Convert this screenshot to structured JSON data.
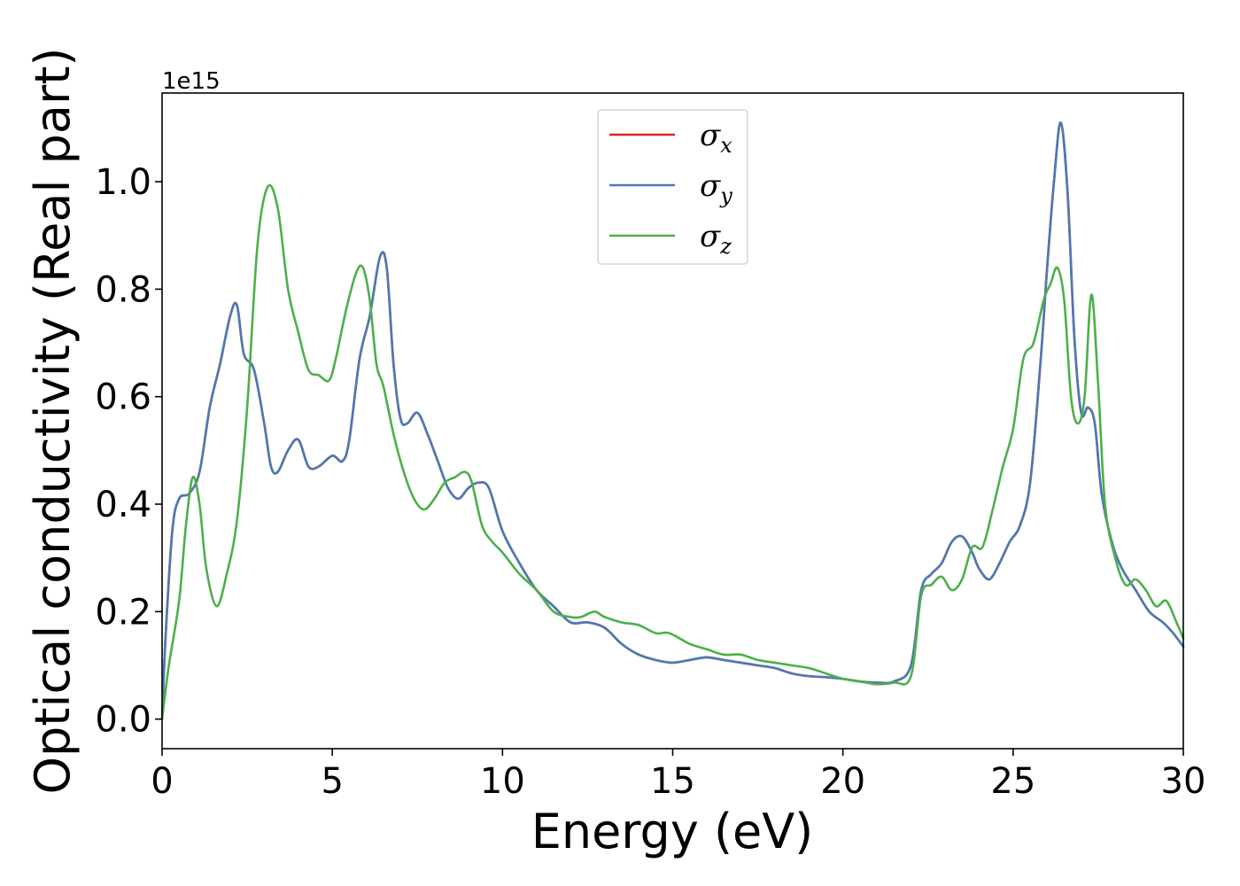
{
  "chart_data": {
    "type": "line",
    "title": "",
    "xlabel": "Energy (eV)",
    "ylabel": "Optical conductivity (Real part)",
    "y_offset_label": "1e15",
    "xlim": [
      0,
      30
    ],
    "ylim": [
      -0.055,
      1.165
    ],
    "xticks": [
      0,
      5,
      10,
      15,
      20,
      25,
      30
    ],
    "xtick_labels": [
      "0",
      "5",
      "10",
      "15",
      "20",
      "25",
      "30"
    ],
    "yticks": [
      0.0,
      0.2,
      0.4,
      0.6,
      0.8,
      1.0
    ],
    "ytick_labels": [
      "0.0",
      "0.2",
      "0.4",
      "0.6",
      "0.8",
      "1.0"
    ],
    "grid": false,
    "legend_position": "top-center",
    "series": [
      {
        "name": "σx",
        "legend_symbol": "σ",
        "legend_subscript": "x",
        "color": "#d62728",
        "x": [
          0,
          0.1,
          0.3,
          0.5,
          0.8,
          1.1,
          1.4,
          1.7,
          2.0,
          2.2,
          2.4,
          2.7,
          3.0,
          3.2,
          3.4,
          3.7,
          4.0,
          4.3,
          4.6,
          5.0,
          5.3,
          5.5,
          5.8,
          6.1,
          6.4,
          6.6,
          6.8,
          7.0,
          7.2,
          7.5,
          7.8,
          8.1,
          8.4,
          8.7,
          9.0,
          9.3,
          9.6,
          10.0,
          10.5,
          11.0,
          11.5,
          12.0,
          12.5,
          13.0,
          13.5,
          14.0,
          14.5,
          15.0,
          15.5,
          16.0,
          16.5,
          17.0,
          17.5,
          18.0,
          18.5,
          19.0,
          19.5,
          20.0,
          20.5,
          21.0,
          21.5,
          22.0,
          22.3,
          22.6,
          22.9,
          23.2,
          23.5,
          23.8,
          24.0,
          24.3,
          24.6,
          24.9,
          25.2,
          25.5,
          25.8,
          26.0,
          26.2,
          26.4,
          26.6,
          26.8,
          27.0,
          27.2,
          27.4,
          27.6,
          27.9,
          28.2,
          28.6,
          29.0,
          29.4,
          29.7,
          30.0
        ],
        "y": [
          0.0,
          0.15,
          0.35,
          0.41,
          0.42,
          0.46,
          0.58,
          0.66,
          0.75,
          0.77,
          0.68,
          0.65,
          0.55,
          0.47,
          0.46,
          0.5,
          0.52,
          0.47,
          0.47,
          0.49,
          0.48,
          0.52,
          0.67,
          0.75,
          0.86,
          0.84,
          0.66,
          0.56,
          0.55,
          0.57,
          0.53,
          0.48,
          0.43,
          0.41,
          0.43,
          0.44,
          0.43,
          0.35,
          0.29,
          0.24,
          0.21,
          0.18,
          0.18,
          0.17,
          0.14,
          0.12,
          0.11,
          0.105,
          0.11,
          0.115,
          0.11,
          0.105,
          0.1,
          0.095,
          0.085,
          0.08,
          0.078,
          0.075,
          0.07,
          0.068,
          0.07,
          0.1,
          0.24,
          0.27,
          0.29,
          0.33,
          0.34,
          0.31,
          0.28,
          0.26,
          0.29,
          0.33,
          0.36,
          0.44,
          0.66,
          0.84,
          1.0,
          1.11,
          0.98,
          0.71,
          0.57,
          0.58,
          0.55,
          0.42,
          0.33,
          0.28,
          0.24,
          0.2,
          0.18,
          0.16,
          0.135
        ]
      },
      {
        "name": "σy",
        "legend_symbol": "σ",
        "legend_subscript": "y",
        "color": "#4a7ab5",
        "x": [
          0,
          0.1,
          0.3,
          0.5,
          0.8,
          1.1,
          1.4,
          1.7,
          2.0,
          2.2,
          2.4,
          2.7,
          3.0,
          3.2,
          3.4,
          3.7,
          4.0,
          4.3,
          4.6,
          5.0,
          5.3,
          5.5,
          5.8,
          6.1,
          6.4,
          6.6,
          6.8,
          7.0,
          7.2,
          7.5,
          7.8,
          8.1,
          8.4,
          8.7,
          9.0,
          9.3,
          9.6,
          10.0,
          10.5,
          11.0,
          11.5,
          12.0,
          12.5,
          13.0,
          13.5,
          14.0,
          14.5,
          15.0,
          15.5,
          16.0,
          16.5,
          17.0,
          17.5,
          18.0,
          18.5,
          19.0,
          19.5,
          20.0,
          20.5,
          21.0,
          21.5,
          22.0,
          22.3,
          22.6,
          22.9,
          23.2,
          23.5,
          23.8,
          24.0,
          24.3,
          24.6,
          24.9,
          25.2,
          25.5,
          25.8,
          26.0,
          26.2,
          26.4,
          26.6,
          26.8,
          27.0,
          27.2,
          27.4,
          27.6,
          27.9,
          28.2,
          28.6,
          29.0,
          29.4,
          29.7,
          30.0
        ],
        "y": [
          0.0,
          0.15,
          0.35,
          0.41,
          0.42,
          0.46,
          0.58,
          0.66,
          0.75,
          0.77,
          0.68,
          0.65,
          0.55,
          0.47,
          0.46,
          0.5,
          0.52,
          0.47,
          0.47,
          0.49,
          0.48,
          0.52,
          0.67,
          0.75,
          0.86,
          0.84,
          0.66,
          0.56,
          0.55,
          0.57,
          0.53,
          0.48,
          0.43,
          0.41,
          0.43,
          0.44,
          0.43,
          0.35,
          0.29,
          0.24,
          0.21,
          0.18,
          0.18,
          0.17,
          0.14,
          0.12,
          0.11,
          0.105,
          0.11,
          0.115,
          0.11,
          0.105,
          0.1,
          0.095,
          0.085,
          0.08,
          0.078,
          0.075,
          0.07,
          0.068,
          0.07,
          0.1,
          0.24,
          0.27,
          0.29,
          0.33,
          0.34,
          0.31,
          0.28,
          0.26,
          0.29,
          0.33,
          0.36,
          0.44,
          0.66,
          0.84,
          1.0,
          1.11,
          0.98,
          0.71,
          0.57,
          0.58,
          0.55,
          0.42,
          0.33,
          0.28,
          0.24,
          0.2,
          0.18,
          0.16,
          0.135
        ]
      },
      {
        "name": "σz",
        "legend_symbol": "σ",
        "legend_subscript": "z",
        "color": "#4daf4a",
        "x": [
          0,
          0.2,
          0.5,
          0.7,
          0.9,
          1.1,
          1.3,
          1.6,
          1.9,
          2.2,
          2.5,
          2.8,
          3.1,
          3.4,
          3.7,
          4.0,
          4.3,
          4.6,
          4.9,
          5.1,
          5.4,
          5.7,
          5.9,
          6.1,
          6.3,
          6.5,
          6.8,
          7.1,
          7.4,
          7.7,
          8.0,
          8.3,
          8.6,
          8.9,
          9.1,
          9.4,
          9.7,
          10.0,
          10.5,
          11.0,
          11.5,
          12.0,
          12.3,
          12.7,
          13.0,
          13.5,
          14.0,
          14.5,
          14.9,
          15.5,
          16.0,
          16.5,
          17.0,
          17.5,
          18.0,
          18.5,
          19.0,
          19.5,
          20.0,
          20.5,
          21.0,
          21.5,
          22.0,
          22.3,
          22.6,
          22.9,
          23.2,
          23.5,
          23.8,
          24.1,
          24.4,
          24.7,
          25.0,
          25.3,
          25.6,
          25.9,
          26.1,
          26.3,
          26.5,
          26.7,
          26.9,
          27.1,
          27.3,
          27.5,
          27.7,
          28.0,
          28.3,
          28.6,
          28.9,
          29.2,
          29.5,
          29.8,
          30.0
        ],
        "y": [
          0.0,
          0.1,
          0.22,
          0.36,
          0.45,
          0.4,
          0.28,
          0.21,
          0.27,
          0.37,
          0.58,
          0.88,
          0.99,
          0.95,
          0.8,
          0.72,
          0.65,
          0.64,
          0.63,
          0.67,
          0.76,
          0.83,
          0.84,
          0.78,
          0.66,
          0.62,
          0.53,
          0.46,
          0.41,
          0.39,
          0.41,
          0.44,
          0.45,
          0.46,
          0.44,
          0.36,
          0.33,
          0.31,
          0.27,
          0.24,
          0.2,
          0.19,
          0.19,
          0.2,
          0.19,
          0.18,
          0.175,
          0.16,
          0.16,
          0.14,
          0.13,
          0.12,
          0.12,
          0.11,
          0.105,
          0.1,
          0.095,
          0.085,
          0.075,
          0.07,
          0.065,
          0.068,
          0.08,
          0.23,
          0.25,
          0.265,
          0.24,
          0.26,
          0.32,
          0.32,
          0.39,
          0.47,
          0.54,
          0.67,
          0.7,
          0.78,
          0.81,
          0.84,
          0.78,
          0.6,
          0.55,
          0.6,
          0.79,
          0.62,
          0.4,
          0.3,
          0.25,
          0.26,
          0.24,
          0.21,
          0.22,
          0.18,
          0.15
        ]
      }
    ]
  }
}
